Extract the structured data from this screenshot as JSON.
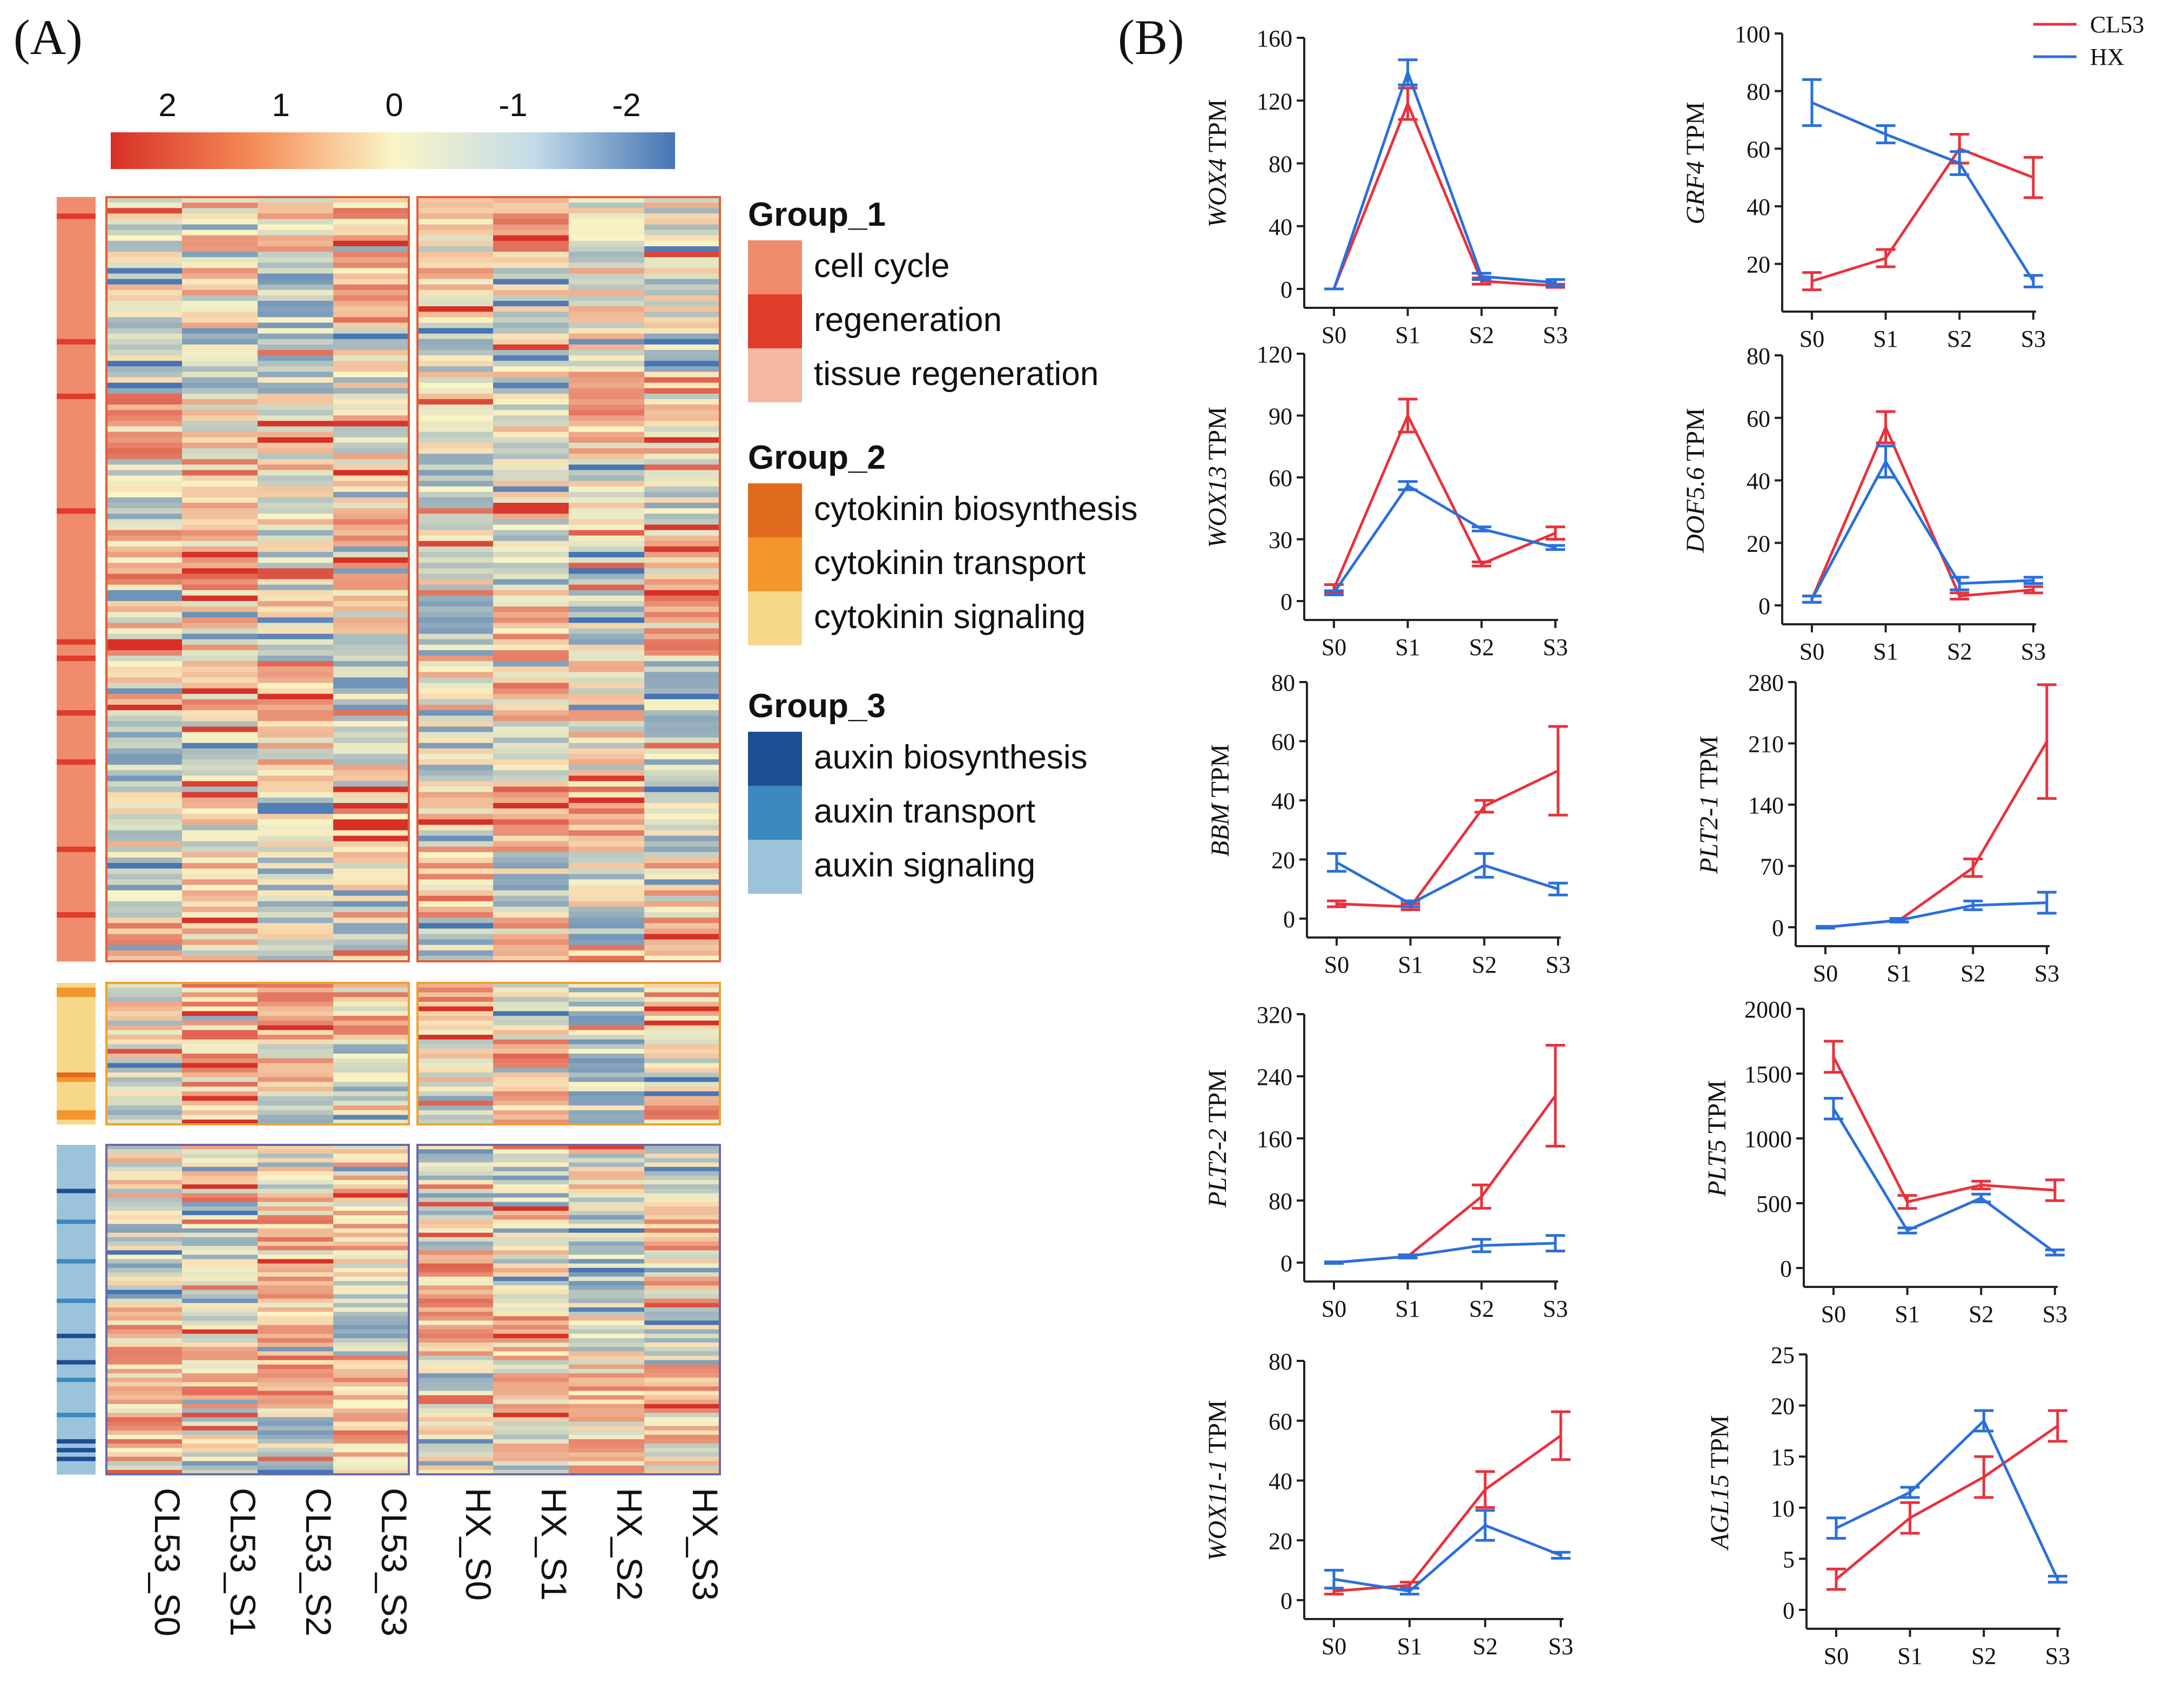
{
  "panel_labels": {
    "a": "(A)",
    "b": "(B)"
  },
  "heatmap": {
    "scale_ticks": [
      "2",
      "1",
      "0",
      "-1",
      "-2"
    ],
    "scale_range": [
      2,
      -2
    ],
    "colors": {
      "high": "#d73027",
      "mid": "#fbf5c6",
      "low": "#4575b4"
    },
    "columns": [
      "CL53_S0",
      "CL53_S1",
      "CL53_S2",
      "CL53_S3",
      "HX_S0",
      "HX_S1",
      "HX_S2",
      "HX_S3"
    ],
    "blocks": [
      {
        "id": "group1",
        "rows": 140,
        "frame_color": "#e0603a",
        "annotation": "cell cycle"
      },
      {
        "id": "group2",
        "rows": 30,
        "frame_color": "#f0a030",
        "annotation": "cytokinin signaling"
      },
      {
        "id": "group3",
        "rows": 75,
        "frame_color": "#6a6aa8",
        "annotation": "auxin signaling"
      }
    ]
  },
  "legend": {
    "groups": [
      {
        "title": "Group_1",
        "items": [
          {
            "label": "cell cycle",
            "color": "#ef8c6e"
          },
          {
            "label": "regeneration",
            "color": "#df3c2b"
          },
          {
            "label": "tissue regeneration",
            "color": "#f6b7a1"
          }
        ]
      },
      {
        "title": "Group_2",
        "items": [
          {
            "label": "cytokinin biosynthesis",
            "color": "#e06b1c"
          },
          {
            "label": "cytokinin transport",
            "color": "#f3962c"
          },
          {
            "label": "cytokinin signaling",
            "color": "#f7d88b"
          }
        ]
      },
      {
        "title": "Group_3",
        "items": [
          {
            "label": "auxin biosynthesis",
            "color": "#1c4e94"
          },
          {
            "label": "auxin transport",
            "color": "#3d88bf"
          },
          {
            "label": "auxin signaling",
            "color": "#9cc3dc"
          }
        ]
      }
    ]
  },
  "chart_data": [
    {
      "type": "line",
      "gene": "WOX4",
      "ylabel_suffix": " TPM",
      "categories": [
        "S0",
        "S1",
        "S2",
        "S3"
      ],
      "yticks": [
        0,
        40,
        80,
        120,
        160
      ],
      "ylim": [
        0,
        160
      ],
      "legend": true,
      "series": [
        {
          "name": "CL53",
          "color": "#e8323c",
          "values": [
            0,
            118,
            5,
            2
          ],
          "errors": [
            0,
            10,
            2,
            1
          ]
        },
        {
          "name": "HX",
          "color": "#2a6fdb",
          "values": [
            0,
            138,
            8,
            4
          ],
          "errors": [
            0,
            8,
            2,
            2
          ]
        }
      ]
    },
    {
      "type": "line",
      "gene": "GRF4",
      "ylabel_suffix": " TPM",
      "categories": [
        "S0",
        "S1",
        "S2",
        "S3"
      ],
      "yticks": [
        20,
        40,
        60,
        80,
        100
      ],
      "ylim": [
        10,
        100
      ],
      "legend": false,
      "series": [
        {
          "name": "CL53",
          "color": "#e8323c",
          "values": [
            14,
            22,
            60,
            50
          ],
          "errors": [
            3,
            3,
            5,
            7
          ]
        },
        {
          "name": "HX",
          "color": "#2a6fdb",
          "values": [
            76,
            65,
            55,
            14
          ],
          "errors": [
            8,
            3,
            4,
            2
          ]
        }
      ]
    },
    {
      "type": "line",
      "gene": "WOX13",
      "ylabel_suffix": " TPM",
      "categories": [
        "S0",
        "S1",
        "S2",
        "S3"
      ],
      "yticks": [
        0,
        30,
        60,
        90,
        120
      ],
      "ylim": [
        0,
        120
      ],
      "legend": false,
      "series": [
        {
          "name": "CL53",
          "color": "#e8323c",
          "values": [
            6,
            90,
            18,
            33
          ],
          "errors": [
            2,
            8,
            1,
            3
          ]
        },
        {
          "name": "HX",
          "color": "#2a6fdb",
          "values": [
            4,
            56,
            35,
            26
          ],
          "errors": [
            1,
            2,
            1,
            1
          ]
        }
      ]
    },
    {
      "type": "line",
      "gene": "DOF5.6",
      "ylabel_suffix": " TPM",
      "categories": [
        "S0",
        "S1",
        "S2",
        "S3"
      ],
      "yticks": [
        0,
        20,
        40,
        60,
        80
      ],
      "ylim": [
        0,
        80
      ],
      "legend": false,
      "series": [
        {
          "name": "CL53",
          "color": "#e8323c",
          "values": [
            2,
            57,
            3,
            5
          ],
          "errors": [
            1,
            5,
            1,
            1
          ]
        },
        {
          "name": "HX",
          "color": "#2a6fdb",
          "values": [
            2,
            46,
            7,
            8
          ],
          "errors": [
            1,
            5,
            2,
            1
          ]
        }
      ]
    },
    {
      "type": "line",
      "gene": "BBM",
      "ylabel_suffix": " TPM",
      "categories": [
        "S0",
        "S1",
        "S2",
        "S3"
      ],
      "yticks": [
        0,
        20,
        40,
        60,
        80
      ],
      "ylim": [
        0,
        80
      ],
      "legend": false,
      "series": [
        {
          "name": "CL53",
          "color": "#e8323c",
          "values": [
            5,
            4,
            38,
            50
          ],
          "errors": [
            1,
            1,
            2,
            15
          ]
        },
        {
          "name": "HX",
          "color": "#2a6fdb",
          "values": [
            19,
            5,
            18,
            10
          ],
          "errors": [
            3,
            1,
            4,
            2
          ]
        }
      ]
    },
    {
      "type": "line",
      "gene": "PLT2-1",
      "ylabel_suffix": " TPM",
      "categories": [
        "S0",
        "S1",
        "S2",
        "S3"
      ],
      "yticks": [
        0,
        70,
        140,
        210,
        280
      ],
      "ylim": [
        0,
        280
      ],
      "legend": false,
      "series": [
        {
          "name": "CL53",
          "color": "#e8323c",
          "values": [
            0,
            8,
            68,
            212
          ],
          "errors": [
            1,
            2,
            10,
            65
          ]
        },
        {
          "name": "HX",
          "color": "#2a6fdb",
          "values": [
            0,
            8,
            25,
            28
          ],
          "errors": [
            1,
            2,
            5,
            12
          ]
        }
      ]
    },
    {
      "type": "line",
      "gene": "PLT2-2",
      "ylabel_suffix": " TPM",
      "categories": [
        "S0",
        "S1",
        "S2",
        "S3"
      ],
      "yticks": [
        0,
        80,
        160,
        240,
        320
      ],
      "ylim": [
        0,
        320
      ],
      "legend": false,
      "series": [
        {
          "name": "CL53",
          "color": "#e8323c",
          "values": [
            0,
            8,
            85,
            215
          ],
          "errors": [
            1,
            2,
            15,
            65
          ]
        },
        {
          "name": "HX",
          "color": "#2a6fdb",
          "values": [
            0,
            8,
            22,
            25
          ],
          "errors": [
            1,
            2,
            8,
            10
          ]
        }
      ]
    },
    {
      "type": "line",
      "gene": "PLT5",
      "ylabel_suffix": " TPM",
      "categories": [
        "S0",
        "S1",
        "S2",
        "S3"
      ],
      "yticks": [
        0,
        500,
        1000,
        1500,
        2000
      ],
      "ylim": [
        0,
        2000
      ],
      "legend": false,
      "series": [
        {
          "name": "CL53",
          "color": "#e8323c",
          "values": [
            1630,
            510,
            640,
            600
          ],
          "errors": [
            120,
            50,
            30,
            80
          ]
        },
        {
          "name": "HX",
          "color": "#2a6fdb",
          "values": [
            1230,
            290,
            540,
            120
          ],
          "errors": [
            80,
            20,
            30,
            20
          ]
        }
      ]
    },
    {
      "type": "line",
      "gene": "WOX11-1",
      "ylabel_suffix": " TPM",
      "categories": [
        "S0",
        "S1",
        "S2",
        "S3"
      ],
      "yticks": [
        0,
        20,
        40,
        60,
        80
      ],
      "ylim": [
        0,
        80
      ],
      "legend": false,
      "series": [
        {
          "name": "CL53",
          "color": "#e8323c",
          "values": [
            3,
            5,
            37,
            55
          ],
          "errors": [
            1,
            1,
            6,
            8
          ]
        },
        {
          "name": "HX",
          "color": "#2a6fdb",
          "values": [
            7,
            3,
            25,
            15
          ],
          "errors": [
            3,
            1,
            5,
            1
          ]
        }
      ]
    },
    {
      "type": "line",
      "gene": "AGL15",
      "ylabel_suffix": " TPM",
      "categories": [
        "S0",
        "S1",
        "S2",
        "S3"
      ],
      "yticks": [
        0,
        5,
        10,
        15,
        20,
        25
      ],
      "ylim": [
        0,
        25
      ],
      "legend": false,
      "series": [
        {
          "name": "CL53",
          "color": "#e8323c",
          "values": [
            3,
            9,
            13,
            18
          ],
          "errors": [
            1,
            1.5,
            2,
            1.5
          ]
        },
        {
          "name": "HX",
          "color": "#2a6fdb",
          "values": [
            8,
            11.5,
            18.5,
            3
          ],
          "errors": [
            1,
            0.5,
            1,
            0.3
          ]
        }
      ]
    }
  ]
}
